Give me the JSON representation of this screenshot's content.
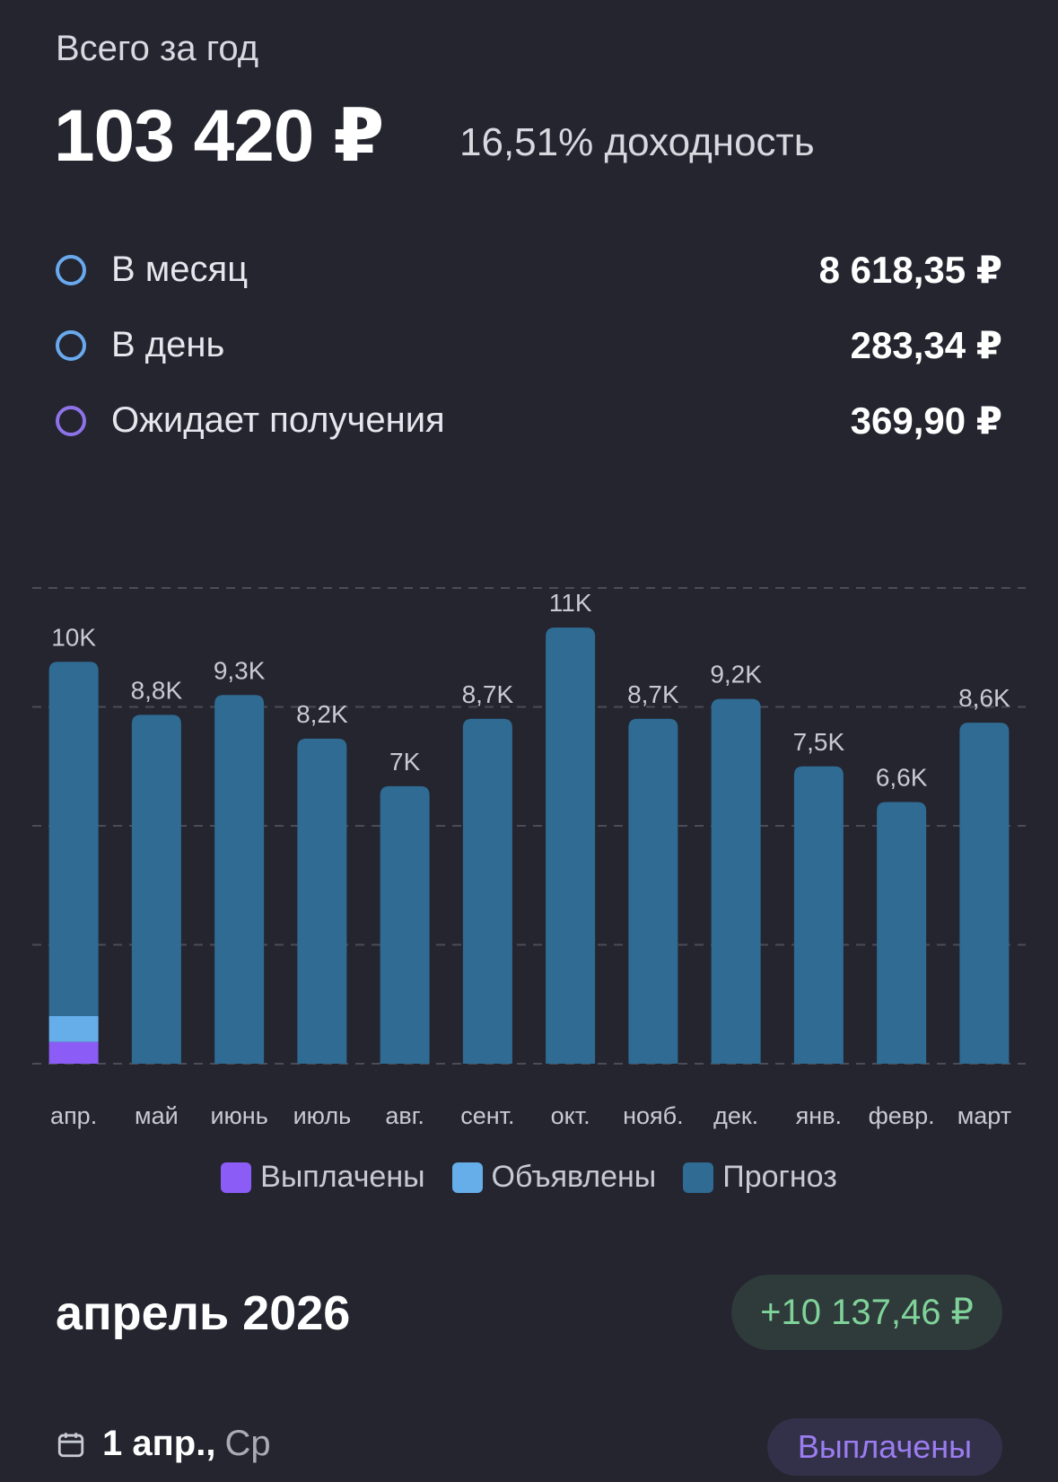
{
  "header": {
    "year_label": "Всего за год",
    "total": "103 420 ₽",
    "yield": "16,51% доходность"
  },
  "stats": [
    {
      "label": "В месяц",
      "value": "8 618,35 ₽",
      "color": "#6aa9ee"
    },
    {
      "label": "В день",
      "value": "283,34 ₽",
      "color": "#6aa9ee"
    },
    {
      "label": "Ожидает получения",
      "value": "369,90 ₽",
      "color": "#8e72e8"
    }
  ],
  "chart_data": {
    "type": "bar",
    "stacked": true,
    "categories": [
      "апр.",
      "май",
      "июнь",
      "июль",
      "авг.",
      "сент.",
      "окт.",
      "нояб.",
      "дек.",
      "янв.",
      "февр.",
      "март"
    ],
    "value_labels": [
      "10K",
      "8,8K",
      "9,3K",
      "8,2K",
      "7K",
      "8,7K",
      "11K",
      "8,7K",
      "9,2K",
      "7,5K",
      "6,6K",
      "8,6K"
    ],
    "series": [
      {
        "name": "Выплачены",
        "color": "#8b5cf6",
        "values": [
          550,
          0,
          0,
          0,
          0,
          0,
          0,
          0,
          0,
          0,
          0,
          0
        ]
      },
      {
        "name": "Объявлены",
        "color": "#66aee9",
        "values": [
          650,
          0,
          0,
          0,
          0,
          0,
          0,
          0,
          0,
          0,
          0,
          0
        ]
      },
      {
        "name": "Прогноз",
        "color": "#2f6b93",
        "values": [
          8937,
          8800,
          9300,
          8200,
          7000,
          8700,
          11000,
          8700,
          9200,
          7500,
          6600,
          8600
        ]
      }
    ],
    "ylim": [
      0,
      12000
    ],
    "grid": true,
    "legend": "bottom"
  },
  "month": {
    "title": "апрель 2026",
    "total": "+10 137,46 ₽"
  },
  "payment": {
    "date": "1 апр.,",
    "weekday": "Ср",
    "status": "Выплачены"
  }
}
